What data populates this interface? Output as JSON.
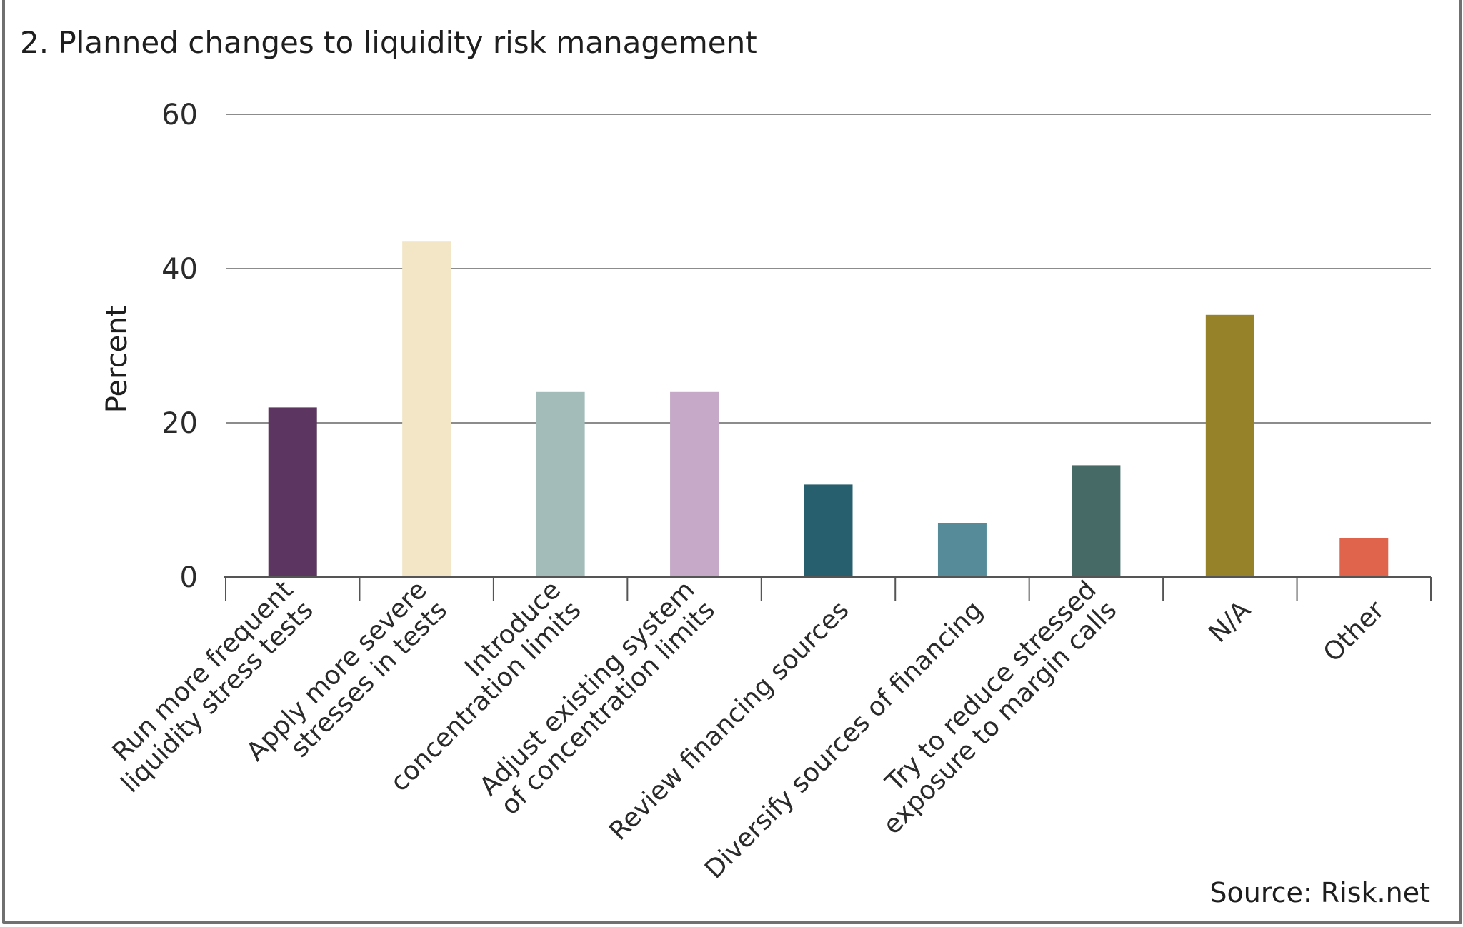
{
  "chart_data": {
    "type": "bar",
    "title": "2. Planned changes to liquidity risk management",
    "ylabel": "Percent",
    "xlabel": "",
    "ylim": [
      0,
      60
    ],
    "yticks": [
      0,
      20,
      40,
      60
    ],
    "grid": true,
    "categories": [
      [
        "Run more frequent",
        "liquidity stress tests"
      ],
      [
        "Apply more severe",
        "stresses in tests"
      ],
      [
        "Introduce",
        "concentration limits"
      ],
      [
        "Adjust existing system",
        "of concentration limits"
      ],
      [
        "Review financing sources"
      ],
      [
        "Diversify sources of financing"
      ],
      [
        "Try to reduce stressed",
        "exposure to margin calls"
      ],
      [
        "N/A"
      ],
      [
        "Other"
      ]
    ],
    "values": [
      22,
      43.5,
      24,
      24,
      12,
      7,
      14.5,
      34,
      5
    ],
    "colors": [
      "#5c3660",
      "#f2e6c6",
      "#a3bcba",
      "#c6a9c8",
      "#275f6e",
      "#568c9a",
      "#466b66",
      "#958229",
      "#e0634c"
    ],
    "source": "Source: Risk.net"
  }
}
